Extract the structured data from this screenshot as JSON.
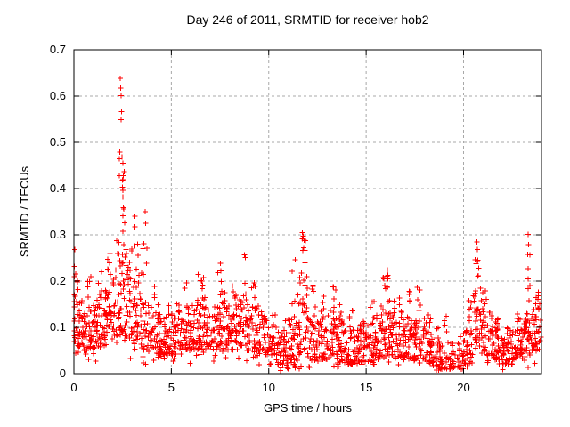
{
  "chart_data": {
    "type": "scatter",
    "title": "Day 246 of 2011, SRMTID for receiver hob2",
    "xlabel": "GPS time / hours",
    "ylabel": "SRMTID / TECUs",
    "xlim": [
      0,
      24
    ],
    "ylim": [
      0,
      0.7
    ],
    "xticks": [
      0,
      5,
      10,
      15,
      20
    ],
    "xtick_labels": [
      "0",
      "5",
      "10",
      "15",
      "20"
    ],
    "yticks": [
      0,
      0.1,
      0.2,
      0.3,
      0.4,
      0.5,
      0.6,
      0.7
    ],
    "ytick_labels": [
      "0",
      "0.1",
      "0.2",
      "0.3",
      "0.4",
      "0.5",
      "0.6",
      "0.7"
    ],
    "grid": true,
    "grid_style": "dashed",
    "grid_color": "#a8a8a8",
    "axis_color": "#000000",
    "background_color": "#ffffff",
    "marker": "plus",
    "marker_color": "#ff0000",
    "marker_size": 7,
    "legend_position": "none",
    "seed": 2462011,
    "density_profile": [
      {
        "x0": 0.0,
        "x1": 0.5,
        "n": 42,
        "lo": 0.06,
        "hi": 0.16,
        "tail": 0.23,
        "tx": 0.1
      },
      {
        "x0": 0.5,
        "x1": 1.0,
        "n": 40,
        "lo": 0.05,
        "hi": 0.14,
        "tail": 0.21,
        "tx": 0.75
      },
      {
        "x0": 1.0,
        "x1": 1.5,
        "n": 40,
        "lo": 0.05,
        "hi": 0.15,
        "tail": 0.24,
        "tx": 1.3
      },
      {
        "x0": 1.5,
        "x1": 2.0,
        "n": 42,
        "lo": 0.06,
        "hi": 0.18,
        "tail": 0.26,
        "tx": 1.8
      },
      {
        "x0": 2.0,
        "x1": 2.5,
        "n": 46,
        "lo": 0.08,
        "hi": 0.3,
        "tail": 0.48,
        "tx": 2.4
      },
      {
        "x0": 2.5,
        "x1": 3.0,
        "n": 46,
        "lo": 0.08,
        "hi": 0.28,
        "tail": 0.44,
        "tx": 2.6
      },
      {
        "x0": 3.0,
        "x1": 3.5,
        "n": 42,
        "lo": 0.06,
        "hi": 0.22,
        "tail": 0.37,
        "tx": 3.2
      },
      {
        "x0": 3.5,
        "x1": 4.0,
        "n": 38,
        "lo": 0.05,
        "hi": 0.16,
        "tail": 0.3,
        "tx": 3.65
      },
      {
        "x0": 4.0,
        "x1": 4.5,
        "n": 38,
        "lo": 0.04,
        "hi": 0.13,
        "tail": 0.2,
        "tx": 4.2
      },
      {
        "x0": 4.5,
        "x1": 5.0,
        "n": 36,
        "lo": 0.04,
        "hi": 0.12,
        "tail": 0.17,
        "tx": 4.8
      },
      {
        "x0": 5.0,
        "x1": 5.5,
        "n": 36,
        "lo": 0.04,
        "hi": 0.13,
        "tail": 0.18,
        "tx": 5.3
      },
      {
        "x0": 5.5,
        "x1": 6.0,
        "n": 36,
        "lo": 0.05,
        "hi": 0.14,
        "tail": 0.2,
        "tx": 5.8
      },
      {
        "x0": 6.0,
        "x1": 6.5,
        "n": 38,
        "lo": 0.05,
        "hi": 0.15,
        "tail": 0.22,
        "tx": 6.45
      },
      {
        "x0": 6.5,
        "x1": 7.0,
        "n": 38,
        "lo": 0.05,
        "hi": 0.16,
        "tail": 0.23,
        "tx": 6.6
      },
      {
        "x0": 7.0,
        "x1": 7.5,
        "n": 38,
        "lo": 0.05,
        "hi": 0.15,
        "tail": 0.24,
        "tx": 7.45
      },
      {
        "x0": 7.5,
        "x1": 8.0,
        "n": 38,
        "lo": 0.05,
        "hi": 0.15,
        "tail": 0.21,
        "tx": 7.7
      },
      {
        "x0": 8.0,
        "x1": 8.5,
        "n": 38,
        "lo": 0.05,
        "hi": 0.15,
        "tail": 0.2,
        "tx": 8.2
      },
      {
        "x0": 8.5,
        "x1": 9.0,
        "n": 38,
        "lo": 0.06,
        "hi": 0.16,
        "tail": 0.26,
        "tx": 8.8
      },
      {
        "x0": 9.0,
        "x1": 9.5,
        "n": 36,
        "lo": 0.05,
        "hi": 0.15,
        "tail": 0.21,
        "tx": 9.2
      },
      {
        "x0": 9.5,
        "x1": 10.0,
        "n": 34,
        "lo": 0.04,
        "hi": 0.12,
        "tail": 0.16,
        "tx": 9.7
      },
      {
        "x0": 10.0,
        "x1": 10.5,
        "n": 34,
        "lo": 0.02,
        "hi": 0.09,
        "tail": 0.13,
        "tx": 10.3
      },
      {
        "x0": 10.5,
        "x1": 11.0,
        "n": 34,
        "lo": 0.01,
        "hi": 0.08,
        "tail": 0.12,
        "tx": 10.8
      },
      {
        "x0": 11.0,
        "x1": 11.5,
        "n": 36,
        "lo": 0.02,
        "hi": 0.12,
        "tail": 0.25,
        "tx": 11.3
      },
      {
        "x0": 11.5,
        "x1": 12.0,
        "n": 44,
        "lo": 0.04,
        "hi": 0.22,
        "tail": 0.3,
        "tx": 11.8
      },
      {
        "x0": 12.0,
        "x1": 12.5,
        "n": 38,
        "lo": 0.03,
        "hi": 0.13,
        "tail": 0.22,
        "tx": 12.3
      },
      {
        "x0": 12.5,
        "x1": 13.0,
        "n": 36,
        "lo": 0.03,
        "hi": 0.12,
        "tail": 0.17,
        "tx": 12.8
      },
      {
        "x0": 13.0,
        "x1": 13.5,
        "n": 38,
        "lo": 0.04,
        "hi": 0.14,
        "tail": 0.19,
        "tx": 13.4
      },
      {
        "x0": 13.5,
        "x1": 14.0,
        "n": 36,
        "lo": 0.02,
        "hi": 0.11,
        "tail": 0.15,
        "tx": 13.7
      },
      {
        "x0": 14.0,
        "x1": 14.5,
        "n": 36,
        "lo": 0.02,
        "hi": 0.1,
        "tail": 0.14,
        "tx": 14.2
      },
      {
        "x0": 14.5,
        "x1": 15.0,
        "n": 36,
        "lo": 0.02,
        "hi": 0.1,
        "tail": 0.13,
        "tx": 14.8
      },
      {
        "x0": 15.0,
        "x1": 15.5,
        "n": 36,
        "lo": 0.02,
        "hi": 0.11,
        "tail": 0.17,
        "tx": 15.3
      },
      {
        "x0": 15.5,
        "x1": 16.0,
        "n": 38,
        "lo": 0.03,
        "hi": 0.14,
        "tail": 0.22,
        "tx": 15.85
      },
      {
        "x0": 16.0,
        "x1": 16.5,
        "n": 38,
        "lo": 0.04,
        "hi": 0.16,
        "tail": 0.23,
        "tx": 16.1
      },
      {
        "x0": 16.5,
        "x1": 17.0,
        "n": 36,
        "lo": 0.03,
        "hi": 0.12,
        "tail": 0.17,
        "tx": 16.8
      },
      {
        "x0": 17.0,
        "x1": 17.5,
        "n": 36,
        "lo": 0.03,
        "hi": 0.13,
        "tail": 0.2,
        "tx": 17.3
      },
      {
        "x0": 17.5,
        "x1": 18.0,
        "n": 36,
        "lo": 0.03,
        "hi": 0.12,
        "tail": 0.19,
        "tx": 17.7
      },
      {
        "x0": 18.0,
        "x1": 18.5,
        "n": 34,
        "lo": 0.02,
        "hi": 0.1,
        "tail": 0.13,
        "tx": 18.2
      },
      {
        "x0": 18.5,
        "x1": 19.0,
        "n": 32,
        "lo": 0.01,
        "hi": 0.07,
        "tail": 0.1,
        "tx": 18.7
      },
      {
        "x0": 19.0,
        "x1": 19.5,
        "n": 30,
        "lo": 0.01,
        "hi": 0.07,
        "tail": 0.13,
        "tx": 19.1
      },
      {
        "x0": 19.5,
        "x1": 20.0,
        "n": 18,
        "lo": 0.01,
        "hi": 0.06,
        "tail": 0.08,
        "tx": 19.8
      },
      {
        "x0": 20.0,
        "x1": 20.5,
        "n": 34,
        "lo": 0.02,
        "hi": 0.12,
        "tail": 0.16,
        "tx": 20.3
      },
      {
        "x0": 20.5,
        "x1": 21.0,
        "n": 40,
        "lo": 0.05,
        "hi": 0.19,
        "tail": 0.26,
        "tx": 20.7
      },
      {
        "x0": 21.0,
        "x1": 21.5,
        "n": 36,
        "lo": 0.04,
        "hi": 0.14,
        "tail": 0.18,
        "tx": 21.1
      },
      {
        "x0": 21.5,
        "x1": 22.0,
        "n": 36,
        "lo": 0.03,
        "hi": 0.1,
        "tail": 0.12,
        "tx": 21.7
      },
      {
        "x0": 22.0,
        "x1": 22.5,
        "n": 36,
        "lo": 0.02,
        "hi": 0.08,
        "tail": 0.1,
        "tx": 22.3
      },
      {
        "x0": 22.5,
        "x1": 23.0,
        "n": 36,
        "lo": 0.03,
        "hi": 0.1,
        "tail": 0.13,
        "tx": 22.8
      },
      {
        "x0": 23.0,
        "x1": 23.5,
        "n": 38,
        "lo": 0.04,
        "hi": 0.13,
        "tail": 0.26,
        "tx": 23.3
      },
      {
        "x0": 23.5,
        "x1": 24.0,
        "n": 40,
        "lo": 0.05,
        "hi": 0.15,
        "tail": 0.2,
        "tx": 23.8
      }
    ],
    "outliers": [
      [
        2.38,
        0.638
      ],
      [
        2.41,
        0.617
      ],
      [
        2.42,
        0.601
      ],
      [
        2.44,
        0.566
      ],
      [
        2.43,
        0.549
      ],
      [
        2.36,
        0.479
      ],
      [
        2.47,
        0.468
      ],
      [
        2.52,
        0.455
      ],
      [
        2.58,
        0.437
      ],
      [
        2.33,
        0.428
      ],
      [
        3.66,
        0.35
      ],
      [
        3.68,
        0.325
      ],
      [
        0.05,
        0.268
      ],
      [
        0.03,
        0.232
      ],
      [
        0.08,
        0.215
      ],
      [
        8.8,
        0.251
      ],
      [
        11.73,
        0.305
      ],
      [
        11.76,
        0.297
      ],
      [
        11.8,
        0.272
      ],
      [
        16.09,
        0.224
      ],
      [
        16.12,
        0.205
      ],
      [
        20.69,
        0.285
      ],
      [
        20.71,
        0.268
      ],
      [
        20.72,
        0.245
      ],
      [
        23.31,
        0.301
      ],
      [
        23.33,
        0.279
      ],
      [
        23.3,
        0.258
      ],
      [
        23.32,
        0.205
      ],
      [
        23.35,
        0.158
      ]
    ]
  },
  "plot_geometry_note": "x ticks 0-20 labeled, axis extends to 24"
}
